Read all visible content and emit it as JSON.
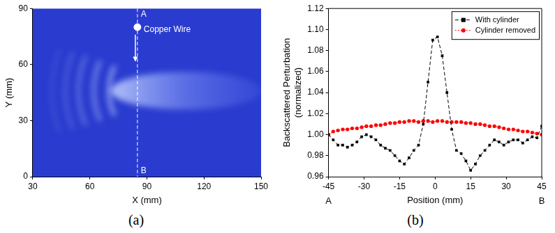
{
  "chart_data": [
    {
      "type": "image",
      "panel_label": "(a)",
      "x_label": "X (mm)",
      "y_label": "Y (mm)",
      "xlim": [
        30,
        150
      ],
      "xticks": [
        30,
        60,
        90,
        120,
        150
      ],
      "ylim": [
        0,
        90
      ],
      "yticks": [
        0,
        30,
        60,
        90
      ],
      "grid": false,
      "color": "#2a3ccf",
      "annotations": [
        {
          "text": "Copper Wire",
          "x": 85,
          "y": 80,
          "marker": "circle"
        },
        {
          "text": "A",
          "x": 85,
          "y": 87
        },
        {
          "text": "B",
          "x": 85,
          "y": 3
        }
      ],
      "lines": [
        {
          "x": 85,
          "from": 90,
          "to": 0,
          "line_style": "dashed"
        }
      ],
      "arrows": [
        {
          "x": 85,
          "from": 76,
          "to": 62
        }
      ]
    },
    {
      "type": "line",
      "panel_label": "(b)",
      "x_label": "Position (mm)",
      "y_label": "Backscattered Perturbation (normalized)",
      "xlim": [
        -45,
        45
      ],
      "xticks": [
        -45,
        -30,
        -15,
        0,
        15,
        30,
        45
      ],
      "ylim": [
        0.96,
        1.12
      ],
      "yticks": [
        0.96,
        0.98,
        {
          "value": 1,
          "label": "1.00"
        },
        1.02,
        1.04,
        1.06,
        1.08,
        {
          "value": 1.1,
          "label": "1.10"
        },
        1.12
      ],
      "grid": false,
      "legend": "upper right",
      "annotations": [
        {
          "text": "A",
          "x": -45
        },
        {
          "text": "B",
          "x": 45
        }
      ],
      "x": [
        -45,
        -43,
        -41,
        -39,
        -37,
        -35,
        -33,
        -31,
        -29,
        -27,
        -25,
        -23,
        -21,
        -19,
        -17,
        -15,
        -13,
        -11,
        -9,
        -7,
        -5,
        -3,
        -1,
        1,
        3,
        5,
        7,
        9,
        11,
        13,
        15,
        17,
        19,
        21,
        23,
        25,
        27,
        29,
        31,
        33,
        35,
        37,
        39,
        41,
        43,
        45
      ],
      "series": [
        {
          "name": "With cylinder",
          "color": "#000000",
          "marker": "square",
          "line_style": "dashed",
          "values": [
            1.0,
            0.995,
            0.99,
            0.99,
            0.988,
            0.99,
            0.993,
            0.998,
            1.0,
            0.998,
            0.995,
            0.99,
            0.987,
            0.985,
            0.98,
            0.975,
            0.972,
            0.978,
            0.985,
            0.99,
            1.01,
            1.05,
            1.09,
            1.093,
            1.075,
            1.04,
            1.005,
            0.985,
            0.982,
            0.975,
            0.966,
            0.972,
            0.98,
            0.985,
            0.99,
            0.995,
            0.993,
            0.99,
            0.993,
            0.995,
            0.995,
            0.992,
            0.995,
            0.998,
            0.997,
            1.008
          ]
        },
        {
          "name": "Cylinder removed",
          "color": "#ff0000",
          "marker": "circle",
          "line_style": "dotted",
          "values": [
            1.0,
            1.003,
            1.004,
            1.005,
            1.005,
            1.006,
            1.006,
            1.007,
            1.008,
            1.008,
            1.009,
            1.009,
            1.01,
            1.011,
            1.011,
            1.012,
            1.012,
            1.013,
            1.013,
            1.012,
            1.013,
            1.013,
            1.012,
            1.013,
            1.013,
            1.012,
            1.012,
            1.012,
            1.012,
            1.011,
            1.011,
            1.01,
            1.01,
            1.009,
            1.008,
            1.008,
            1.007,
            1.006,
            1.005,
            1.005,
            1.004,
            1.003,
            1.003,
            1.002,
            1.001,
            1.0
          ]
        }
      ]
    }
  ]
}
